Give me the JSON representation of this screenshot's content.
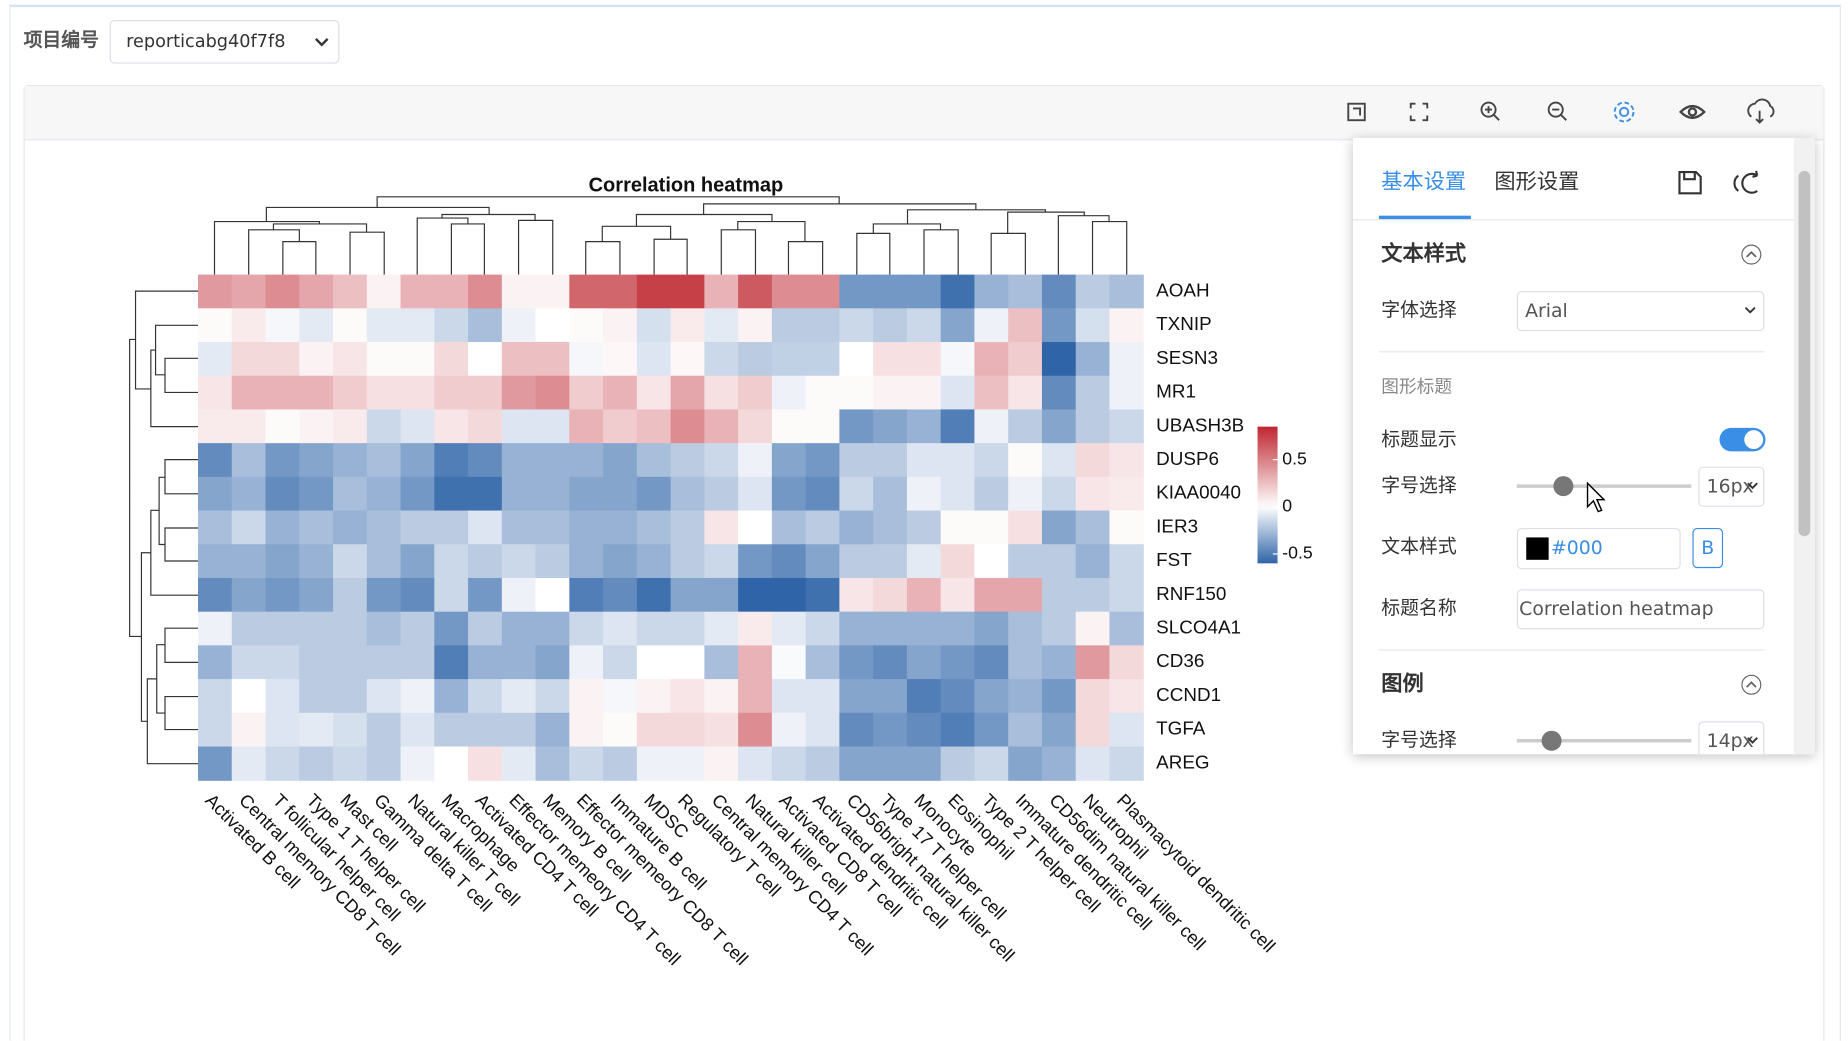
{
  "header": {
    "label": "项目编号",
    "project": "reporticabg40f7f8"
  },
  "chart_data": {
    "type": "heatmap",
    "title": "Correlation heatmap",
    "categories": [
      "Activated B cell",
      "Central memory CD8 T cell",
      "T follicular helper cell",
      "Type 1 T helper cell",
      "Mast cell",
      "Gamma delta T cell",
      "Natural killer T cell",
      "Macrophage",
      "Activated CD4 T cell",
      "Effector memeory CD4 T cell",
      "Memory B cell",
      "Effector memeory CD8 T cell",
      "Immature B cell",
      "MDSC",
      "Regulatory T cell",
      "Central memory CD4 T cell",
      "Natural killer cell",
      "Activated CD8 T cell",
      "Activated dendritic cell",
      "CD56bright natural killer cell",
      "Type 17 T helper cell",
      "Monocyte",
      "Eosinophil",
      "Type 2 T helper cell",
      "Immature dendritic cell",
      "CD56dim natural killer cell",
      "Neutrophil",
      "Plasmacytoid dendritic cell"
    ],
    "rows": [
      "AOAH",
      "TXNIP",
      "SESN3",
      "MR1",
      "UBASH3B",
      "DUSP6",
      "KIAA0040",
      "IER3",
      "FST",
      "RNF150",
      "SLCO4A1",
      "CD36",
      "CCND1",
      "TGFA",
      "AREG"
    ],
    "z": [
      [
        0.4,
        0.35,
        0.45,
        0.35,
        0.25,
        0.05,
        0.3,
        0.3,
        0.45,
        0.05,
        0.05,
        0.6,
        0.6,
        0.75,
        0.75,
        0.3,
        0.65,
        0.45,
        0.45,
        -0.4,
        -0.4,
        -0.4,
        -0.55,
        -0.3,
        -0.25,
        -0.45,
        -0.2,
        -0.25
      ],
      [
        0.02,
        0.08,
        -0.03,
        -0.08,
        0.02,
        -0.08,
        -0.08,
        -0.15,
        -0.25,
        -0.05,
        0,
        0.02,
        0.05,
        -0.12,
        0.08,
        -0.08,
        0.05,
        -0.2,
        -0.2,
        -0.15,
        -0.2,
        -0.15,
        -0.35,
        -0.05,
        0.25,
        -0.4,
        -0.12,
        0.05
      ],
      [
        -0.08,
        0.15,
        0.15,
        0.05,
        0.1,
        0.02,
        0.02,
        0.15,
        0,
        0.25,
        0.25,
        -0.03,
        0.03,
        -0.1,
        0.03,
        -0.15,
        -0.2,
        -0.18,
        -0.18,
        0,
        0.12,
        0.12,
        -0.03,
        0.3,
        0.2,
        -0.6,
        -0.3,
        -0.05
      ],
      [
        0.1,
        0.3,
        0.3,
        0.3,
        0.2,
        0.12,
        0.12,
        0.2,
        0.2,
        0.4,
        0.45,
        0.2,
        0.3,
        0.1,
        0.35,
        0.12,
        0.2,
        -0.05,
        0.02,
        0.02,
        0.05,
        0.05,
        -0.1,
        0.25,
        0.1,
        -0.45,
        -0.2,
        -0.05
      ],
      [
        0.08,
        0.08,
        0.02,
        0.05,
        0.08,
        -0.15,
        -0.1,
        0.1,
        0.15,
        -0.1,
        -0.1,
        0.3,
        0.2,
        0.25,
        0.45,
        0.3,
        0.15,
        0.02,
        0.02,
        -0.4,
        -0.35,
        -0.3,
        -0.5,
        -0.05,
        -0.2,
        -0.35,
        -0.2,
        -0.15
      ],
      [
        -0.45,
        -0.25,
        -0.4,
        -0.35,
        -0.3,
        -0.25,
        -0.35,
        -0.5,
        -0.45,
        -0.3,
        -0.3,
        -0.3,
        -0.35,
        -0.25,
        -0.2,
        -0.15,
        -0.05,
        -0.35,
        -0.4,
        -0.2,
        -0.2,
        -0.1,
        -0.1,
        -0.15,
        0.02,
        -0.1,
        0.15,
        0.1
      ],
      [
        -0.35,
        -0.3,
        -0.45,
        -0.4,
        -0.25,
        -0.3,
        -0.4,
        -0.55,
        -0.55,
        -0.3,
        -0.3,
        -0.35,
        -0.35,
        -0.4,
        -0.25,
        -0.2,
        -0.1,
        -0.4,
        -0.45,
        -0.15,
        -0.25,
        -0.05,
        -0.1,
        -0.2,
        -0.05,
        -0.15,
        0.1,
        0.08
      ],
      [
        -0.25,
        -0.15,
        -0.3,
        -0.25,
        -0.3,
        -0.25,
        -0.2,
        -0.2,
        -0.1,
        -0.25,
        -0.25,
        -0.3,
        -0.3,
        -0.25,
        -0.2,
        0.1,
        0,
        -0.25,
        -0.2,
        -0.3,
        -0.25,
        -0.2,
        0.02,
        0.02,
        0.12,
        -0.35,
        -0.25,
        0.02
      ],
      [
        -0.3,
        -0.3,
        -0.35,
        -0.3,
        -0.15,
        -0.25,
        -0.35,
        -0.15,
        -0.2,
        -0.15,
        -0.2,
        -0.3,
        -0.35,
        -0.3,
        -0.2,
        -0.15,
        -0.4,
        -0.45,
        -0.35,
        -0.2,
        -0.2,
        -0.08,
        0.15,
        0,
        -0.2,
        -0.2,
        -0.3,
        -0.15
      ],
      [
        -0.45,
        -0.35,
        -0.4,
        -0.35,
        -0.2,
        -0.4,
        -0.45,
        -0.15,
        -0.4,
        -0.05,
        0,
        -0.5,
        -0.45,
        -0.55,
        -0.35,
        -0.35,
        -0.65,
        -0.6,
        -0.55,
        0.1,
        0.15,
        0.3,
        0.1,
        0.35,
        0.35,
        -0.2,
        -0.2,
        -0.15
      ],
      [
        -0.05,
        -0.2,
        -0.2,
        -0.2,
        -0.2,
        -0.25,
        -0.2,
        -0.4,
        -0.2,
        -0.3,
        -0.3,
        -0.15,
        -0.1,
        -0.15,
        -0.15,
        -0.08,
        0.08,
        -0.08,
        -0.15,
        -0.3,
        -0.3,
        -0.3,
        -0.3,
        -0.35,
        -0.25,
        -0.2,
        0.05,
        -0.25
      ],
      [
        -0.3,
        -0.15,
        -0.15,
        -0.2,
        -0.2,
        -0.2,
        -0.2,
        -0.5,
        -0.3,
        -0.3,
        -0.35,
        -0.05,
        -0.15,
        0,
        0,
        -0.25,
        0.3,
        -0.02,
        -0.25,
        -0.4,
        -0.45,
        -0.35,
        -0.4,
        -0.45,
        -0.25,
        -0.3,
        0.4,
        0.15
      ],
      [
        -0.15,
        0,
        -0.1,
        -0.2,
        -0.2,
        -0.1,
        -0.05,
        -0.3,
        -0.15,
        -0.08,
        -0.15,
        0.05,
        -0.03,
        0.05,
        0.1,
        0.05,
        0.3,
        -0.1,
        -0.1,
        -0.35,
        -0.35,
        -0.5,
        -0.45,
        -0.35,
        -0.3,
        -0.4,
        0.15,
        0.1
      ],
      [
        -0.15,
        0.05,
        -0.1,
        -0.08,
        -0.12,
        -0.2,
        -0.1,
        -0.2,
        -0.2,
        -0.2,
        -0.3,
        0.05,
        0.02,
        0.15,
        0.15,
        0.12,
        0.45,
        -0.05,
        -0.1,
        -0.45,
        -0.4,
        -0.45,
        -0.5,
        -0.4,
        -0.25,
        -0.35,
        0.15,
        -0.1
      ],
      [
        -0.4,
        -0.08,
        -0.15,
        -0.2,
        -0.15,
        -0.2,
        -0.05,
        0,
        0.12,
        -0.08,
        -0.25,
        -0.15,
        -0.2,
        -0.05,
        -0.05,
        0.05,
        -0.1,
        -0.15,
        -0.2,
        -0.35,
        -0.35,
        -0.35,
        -0.2,
        -0.15,
        -0.35,
        -0.3,
        -0.1,
        -0.15
      ]
    ],
    "zlim": [
      -0.6,
      0.85
    ],
    "zticks": [
      0.5,
      0,
      -0.5
    ],
    "colors": [
      "#2f64a8",
      "#ffffff",
      "#be2630"
    ]
  },
  "settings_panel": {
    "tabs": [
      "基本设置",
      "图形设置"
    ],
    "text_style": {
      "heading": "文本样式",
      "font_label": "字体选择",
      "font": "Arial",
      "title_heading": "图形标题",
      "title_show_label": "标题显示",
      "size_label": "字号选择",
      "size": "16px",
      "style_label": "文本样式",
      "color": "#000",
      "bold": "B",
      "name_label": "标题名称",
      "name": "Correlation heatmap"
    },
    "legend": {
      "heading": "图例",
      "size_label": "字号选择",
      "size": "14px"
    }
  }
}
